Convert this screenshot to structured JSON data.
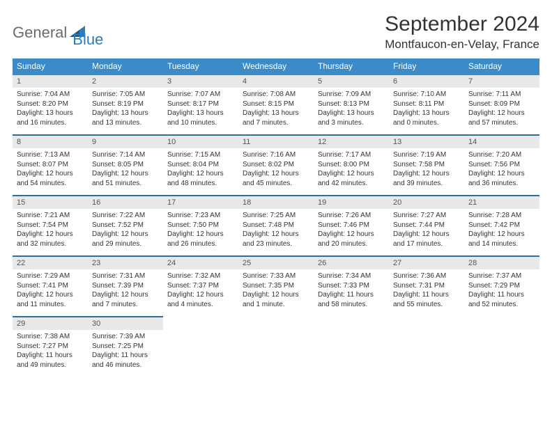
{
  "logo": {
    "general": "General",
    "blue": "Blue"
  },
  "title": "September 2024",
  "location": "Montfaucon-en-Velay, France",
  "day_names": [
    "Sunday",
    "Monday",
    "Tuesday",
    "Wednesday",
    "Thursday",
    "Friday",
    "Saturday"
  ],
  "colors": {
    "header_bg": "#3b8bc8",
    "header_text": "#ffffff",
    "date_bg": "#e8e8e8",
    "border_first": "#3b8bc8",
    "border_rest": "#2b6fa0",
    "text": "#333333",
    "logo_gray": "#6b6b6b",
    "logo_blue": "#2b7bbf"
  },
  "fonts": {
    "title_pt": 30,
    "location_pt": 17,
    "logo_pt": 22,
    "dayheader_pt": 12,
    "date_pt": 11,
    "data_pt": 10
  },
  "weeks": [
    [
      {
        "n": "1",
        "sunrise": "7:04 AM",
        "sunset": "8:20 PM",
        "dl": "13 hours and 16 minutes."
      },
      {
        "n": "2",
        "sunrise": "7:05 AM",
        "sunset": "8:19 PM",
        "dl": "13 hours and 13 minutes."
      },
      {
        "n": "3",
        "sunrise": "7:07 AM",
        "sunset": "8:17 PM",
        "dl": "13 hours and 10 minutes."
      },
      {
        "n": "4",
        "sunrise": "7:08 AM",
        "sunset": "8:15 PM",
        "dl": "13 hours and 7 minutes."
      },
      {
        "n": "5",
        "sunrise": "7:09 AM",
        "sunset": "8:13 PM",
        "dl": "13 hours and 3 minutes."
      },
      {
        "n": "6",
        "sunrise": "7:10 AM",
        "sunset": "8:11 PM",
        "dl": "13 hours and 0 minutes."
      },
      {
        "n": "7",
        "sunrise": "7:11 AM",
        "sunset": "8:09 PM",
        "dl": "12 hours and 57 minutes."
      }
    ],
    [
      {
        "n": "8",
        "sunrise": "7:13 AM",
        "sunset": "8:07 PM",
        "dl": "12 hours and 54 minutes."
      },
      {
        "n": "9",
        "sunrise": "7:14 AM",
        "sunset": "8:05 PM",
        "dl": "12 hours and 51 minutes."
      },
      {
        "n": "10",
        "sunrise": "7:15 AM",
        "sunset": "8:04 PM",
        "dl": "12 hours and 48 minutes."
      },
      {
        "n": "11",
        "sunrise": "7:16 AM",
        "sunset": "8:02 PM",
        "dl": "12 hours and 45 minutes."
      },
      {
        "n": "12",
        "sunrise": "7:17 AM",
        "sunset": "8:00 PM",
        "dl": "12 hours and 42 minutes."
      },
      {
        "n": "13",
        "sunrise": "7:19 AM",
        "sunset": "7:58 PM",
        "dl": "12 hours and 39 minutes."
      },
      {
        "n": "14",
        "sunrise": "7:20 AM",
        "sunset": "7:56 PM",
        "dl": "12 hours and 36 minutes."
      }
    ],
    [
      {
        "n": "15",
        "sunrise": "7:21 AM",
        "sunset": "7:54 PM",
        "dl": "12 hours and 32 minutes."
      },
      {
        "n": "16",
        "sunrise": "7:22 AM",
        "sunset": "7:52 PM",
        "dl": "12 hours and 29 minutes."
      },
      {
        "n": "17",
        "sunrise": "7:23 AM",
        "sunset": "7:50 PM",
        "dl": "12 hours and 26 minutes."
      },
      {
        "n": "18",
        "sunrise": "7:25 AM",
        "sunset": "7:48 PM",
        "dl": "12 hours and 23 minutes."
      },
      {
        "n": "19",
        "sunrise": "7:26 AM",
        "sunset": "7:46 PM",
        "dl": "12 hours and 20 minutes."
      },
      {
        "n": "20",
        "sunrise": "7:27 AM",
        "sunset": "7:44 PM",
        "dl": "12 hours and 17 minutes."
      },
      {
        "n": "21",
        "sunrise": "7:28 AM",
        "sunset": "7:42 PM",
        "dl": "12 hours and 14 minutes."
      }
    ],
    [
      {
        "n": "22",
        "sunrise": "7:29 AM",
        "sunset": "7:41 PM",
        "dl": "12 hours and 11 minutes."
      },
      {
        "n": "23",
        "sunrise": "7:31 AM",
        "sunset": "7:39 PM",
        "dl": "12 hours and 7 minutes."
      },
      {
        "n": "24",
        "sunrise": "7:32 AM",
        "sunset": "7:37 PM",
        "dl": "12 hours and 4 minutes."
      },
      {
        "n": "25",
        "sunrise": "7:33 AM",
        "sunset": "7:35 PM",
        "dl": "12 hours and 1 minute."
      },
      {
        "n": "26",
        "sunrise": "7:34 AM",
        "sunset": "7:33 PM",
        "dl": "11 hours and 58 minutes."
      },
      {
        "n": "27",
        "sunrise": "7:36 AM",
        "sunset": "7:31 PM",
        "dl": "11 hours and 55 minutes."
      },
      {
        "n": "28",
        "sunrise": "7:37 AM",
        "sunset": "7:29 PM",
        "dl": "11 hours and 52 minutes."
      }
    ],
    [
      {
        "n": "29",
        "sunrise": "7:38 AM",
        "sunset": "7:27 PM",
        "dl": "11 hours and 49 minutes."
      },
      {
        "n": "30",
        "sunrise": "7:39 AM",
        "sunset": "7:25 PM",
        "dl": "11 hours and 46 minutes."
      },
      null,
      null,
      null,
      null,
      null
    ]
  ]
}
